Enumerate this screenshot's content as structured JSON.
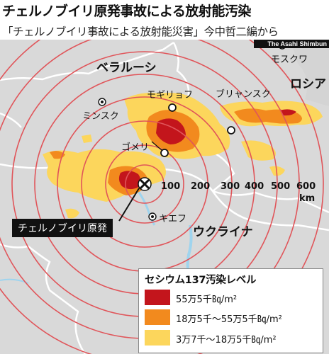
{
  "title": "チェルノブイリ原発事故による放射能汚染",
  "subtitle": "「チェルノブイリ事故による放射能災害」今中哲二編から",
  "credit": "The Asahi Shimbun",
  "countries": {
    "belarus": "ベラルーシ",
    "russia": "ロシア",
    "ukraine": "ウクライナ"
  },
  "cities": {
    "minsk": "ミンスク",
    "mogilev": "モギリョフ",
    "bryansk": "ブリャンスク",
    "moscow": "モスクワ",
    "gomel": "ゴメリ",
    "kiev": "キエフ"
  },
  "plant_label": "チェルノブイリ原発",
  "scale": {
    "ticks": [
      "100",
      "200",
      "300",
      "400",
      "500",
      "600"
    ],
    "unit": "km"
  },
  "legend": {
    "title": "セシウム137汚染レベル",
    "items": [
      {
        "label": "55万5千㏃/m²",
        "color": "#c3151c"
      },
      {
        "label": "18万5千～55万5千㏃/m²",
        "color": "#f28a1e"
      },
      {
        "label": "3万7千～18万5千㏃/m²",
        "color": "#fcd65c"
      }
    ]
  },
  "colors": {
    "ring": "#e0555a",
    "land": "#d9d9d9",
    "border": "#ffffff",
    "water": "#9fd4ee"
  }
}
